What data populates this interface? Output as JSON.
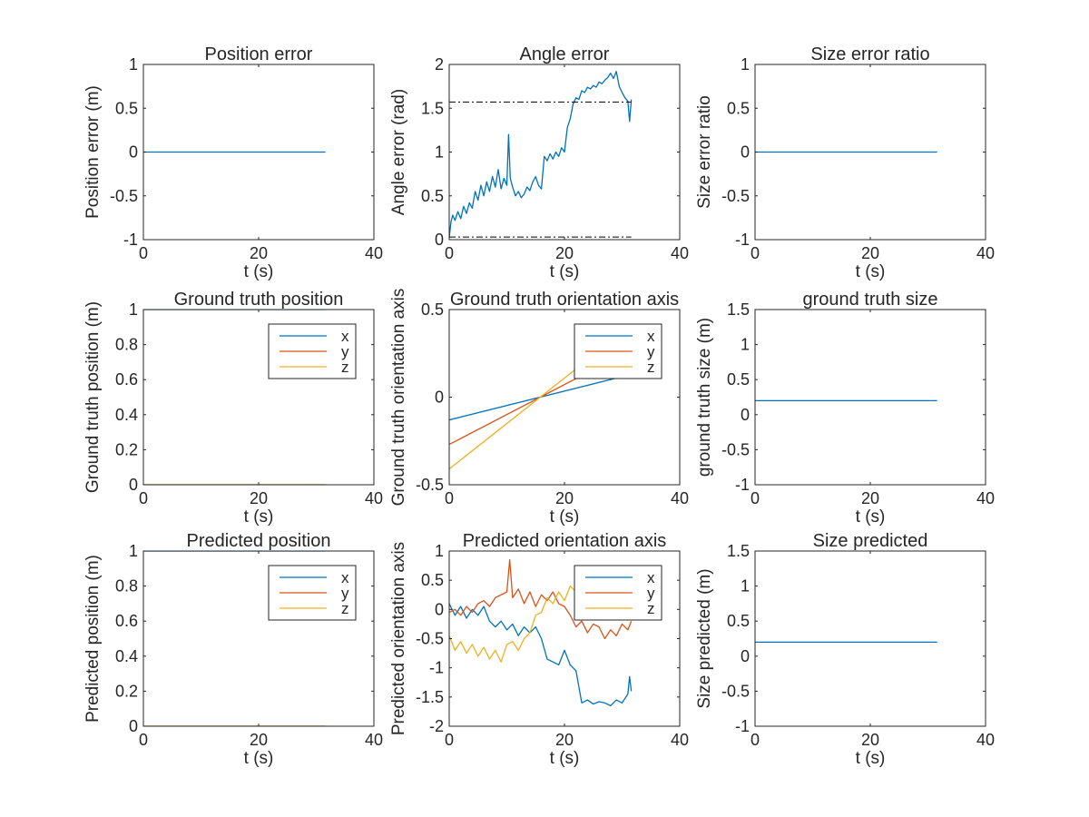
{
  "colors": {
    "x": "#0072BD",
    "y": "#D95319",
    "z": "#EDB120",
    "ref": "#000000",
    "axis": "#262626"
  },
  "chart_data": [
    {
      "id": "position-error",
      "type": "line",
      "title": "Position error",
      "xlabel": "t (s)",
      "ylabel": "Position error (m)",
      "xlim": [
        0,
        40
      ],
      "ylim": [
        -1,
        1
      ],
      "xticks": [
        0,
        20,
        40
      ],
      "yticks": [
        -1,
        -0.5,
        0,
        0.5,
        1
      ],
      "series": [
        {
          "color": "x",
          "x": [
            0,
            31.6
          ],
          "y": [
            0,
            0
          ]
        }
      ]
    },
    {
      "id": "angle-error",
      "type": "line",
      "title": "Angle error",
      "xlabel": "t (s)",
      "ylabel": "Angle error (rad)",
      "xlim": [
        0,
        40
      ],
      "ylim": [
        0,
        2
      ],
      "xticks": [
        0,
        20,
        40
      ],
      "yticks": [
        0,
        0.5,
        1,
        1.5,
        2
      ],
      "series": [
        {
          "color": "x",
          "x": [
            0,
            0.3,
            0.6,
            1,
            1.5,
            2,
            2.5,
            3,
            3.5,
            4,
            4.5,
            5,
            5.5,
            6,
            6.5,
            7,
            7.5,
            8,
            8.5,
            9,
            9.5,
            10,
            10.3,
            10.6,
            11,
            11.5,
            12,
            12.5,
            13,
            13.5,
            14,
            14.5,
            15,
            15.5,
            16,
            16.5,
            17,
            17.5,
            18,
            18.5,
            19,
            19.5,
            20,
            20.5,
            21,
            21.5,
            22,
            22.5,
            23,
            23.5,
            24,
            24.5,
            25,
            25.5,
            26,
            26.5,
            27,
            27.5,
            28,
            28.5,
            29,
            29.5,
            30,
            30.5,
            31,
            31.3,
            31.6
          ],
          "y": [
            0.02,
            0.2,
            0.28,
            0.22,
            0.32,
            0.24,
            0.38,
            0.3,
            0.42,
            0.36,
            0.55,
            0.45,
            0.62,
            0.5,
            0.66,
            0.55,
            0.72,
            0.6,
            0.8,
            0.58,
            0.7,
            0.62,
            1.2,
            0.7,
            0.6,
            0.5,
            0.55,
            0.48,
            0.52,
            0.6,
            0.56,
            0.66,
            0.72,
            0.62,
            0.58,
            0.95,
            0.9,
            0.98,
            0.92,
            1.0,
            0.95,
            1.05,
            1.0,
            1.28,
            1.38,
            1.55,
            1.62,
            1.6,
            1.7,
            1.68,
            1.74,
            1.72,
            1.76,
            1.74,
            1.8,
            1.78,
            1.82,
            1.85,
            1.9,
            1.84,
            1.92,
            1.75,
            1.68,
            1.62,
            1.58,
            1.35,
            1.6
          ]
        },
        {
          "color": "ref",
          "dash": true,
          "x": [
            0,
            31.6
          ],
          "y": [
            1.5708,
            1.5708
          ]
        },
        {
          "color": "ref",
          "dash": true,
          "x": [
            0,
            31.6
          ],
          "y": [
            0.03,
            0.03
          ]
        }
      ]
    },
    {
      "id": "size-error-ratio",
      "type": "line",
      "title": "Size error ratio",
      "xlabel": "t (s)",
      "ylabel": "Size error ratio",
      "xlim": [
        0,
        40
      ],
      "ylim": [
        -1,
        1
      ],
      "xticks": [
        0,
        20,
        40
      ],
      "yticks": [
        -1,
        -0.5,
        0,
        0.5,
        1
      ],
      "series": [
        {
          "color": "x",
          "x": [
            0,
            31.6
          ],
          "y": [
            0,
            0
          ]
        }
      ]
    },
    {
      "id": "ground-truth-position",
      "type": "line",
      "title": "Ground truth position",
      "xlabel": "t (s)",
      "ylabel": "Ground truth position (m)",
      "xlim": [
        0,
        40
      ],
      "ylim": [
        0,
        1
      ],
      "xticks": [
        0,
        20,
        40
      ],
      "yticks": [
        0,
        0.2,
        0.4,
        0.6,
        0.8,
        1
      ],
      "legend": {
        "placement": "top-right",
        "entries": [
          "x",
          "y",
          "z"
        ]
      },
      "series": [
        {
          "color": "x",
          "name": "x",
          "x": [
            0,
            31.6
          ],
          "y": [
            1,
            1
          ]
        },
        {
          "color": "y",
          "name": "y",
          "x": [
            0,
            31.6
          ],
          "y": [
            0,
            0
          ]
        },
        {
          "color": "z",
          "name": "z",
          "x": [
            0,
            31.6
          ],
          "y": [
            0,
            0
          ]
        }
      ]
    },
    {
      "id": "ground-truth-orientation-axis",
      "type": "line",
      "title": "Ground truth orientation axis",
      "xlabel": "t (s)",
      "ylabel": "Ground truth orientation axis",
      "xlim": [
        0,
        40
      ],
      "ylim": [
        -0.5,
        0.5
      ],
      "xticks": [
        0,
        20,
        40
      ],
      "yticks": [
        -0.5,
        0,
        0.5
      ],
      "legend": {
        "placement": "top-right",
        "entries": [
          "x",
          "y",
          "z"
        ]
      },
      "series": [
        {
          "color": "x",
          "name": "x",
          "x": [
            0,
            31.6
          ],
          "y": [
            -0.13,
            0.13
          ]
        },
        {
          "color": "y",
          "name": "y",
          "x": [
            0,
            31.6
          ],
          "y": [
            -0.27,
            0.27
          ]
        },
        {
          "color": "z",
          "name": "z",
          "x": [
            0,
            31.6
          ],
          "y": [
            -0.41,
            0.41
          ]
        }
      ]
    },
    {
      "id": "ground-truth-size",
      "type": "line",
      "title": "ground truth size",
      "xlabel": "t (s)",
      "ylabel": "ground truth size (m)",
      "xlim": [
        0,
        40
      ],
      "ylim": [
        -1,
        1.5
      ],
      "xticks": [
        0,
        20,
        40
      ],
      "yticks": [
        -1,
        -0.5,
        0,
        0.5,
        1,
        1.5
      ],
      "series": [
        {
          "color": "x",
          "x": [
            0,
            31.6
          ],
          "y": [
            0.2,
            0.2
          ]
        }
      ]
    },
    {
      "id": "predicted-position",
      "type": "line",
      "title": "Predicted position",
      "xlabel": "t (s)",
      "ylabel": "Predicted position (m)",
      "xlim": [
        0,
        40
      ],
      "ylim": [
        0,
        1
      ],
      "xticks": [
        0,
        20,
        40
      ],
      "yticks": [
        0,
        0.2,
        0.4,
        0.6,
        0.8,
        1
      ],
      "legend": {
        "placement": "top-right",
        "entries": [
          "x",
          "y",
          "z"
        ]
      },
      "series": [
        {
          "color": "x",
          "name": "x",
          "x": [
            0,
            31.6
          ],
          "y": [
            1,
            1
          ]
        },
        {
          "color": "y",
          "name": "y",
          "x": [
            0,
            31.6
          ],
          "y": [
            0,
            0
          ]
        },
        {
          "color": "z",
          "name": "z",
          "x": [
            0,
            31.6
          ],
          "y": [
            0,
            0
          ]
        }
      ]
    },
    {
      "id": "predicted-orientation-axis",
      "type": "line",
      "title": "Predicted orientation axis",
      "xlabel": "t (s)",
      "ylabel": "Predicted orientation axis",
      "xlim": [
        0,
        40
      ],
      "ylim": [
        -2,
        1
      ],
      "xticks": [
        0,
        20,
        40
      ],
      "yticks": [
        -2,
        -1.5,
        -1,
        -0.5,
        0,
        0.5,
        1
      ],
      "legend": {
        "placement": "top-right",
        "entries": [
          "x",
          "y",
          "z"
        ]
      },
      "series": [
        {
          "color": "x",
          "name": "x",
          "x": [
            0,
            1,
            2,
            3,
            4,
            5,
            6,
            7,
            8,
            9,
            10,
            11,
            12,
            13,
            14,
            15,
            16,
            17,
            18,
            19,
            20,
            21,
            22,
            23,
            24,
            25,
            26,
            27,
            28,
            29,
            30,
            31,
            31.3,
            31.6
          ],
          "y": [
            0.1,
            -0.1,
            0.05,
            -0.15,
            0,
            -0.1,
            0.05,
            -0.2,
            -0.3,
            -0.2,
            -0.35,
            -0.25,
            -0.45,
            -0.3,
            -0.4,
            -0.3,
            -0.5,
            -0.85,
            -0.9,
            -0.95,
            -0.7,
            -0.95,
            -1.05,
            -1.6,
            -1.55,
            -1.62,
            -1.58,
            -1.6,
            -1.65,
            -1.55,
            -1.6,
            -1.45,
            -1.15,
            -1.4
          ]
        },
        {
          "color": "y",
          "name": "y",
          "x": [
            0,
            1,
            2,
            3,
            4,
            5,
            6,
            7,
            8,
            9,
            10,
            10.5,
            11,
            12,
            13,
            14,
            15,
            16,
            17,
            18,
            19,
            20,
            21,
            22,
            23,
            24,
            25,
            26,
            27,
            28,
            29,
            30,
            31,
            31.6
          ],
          "y": [
            -0.05,
            0,
            -0.1,
            0.05,
            -0.05,
            0.1,
            0.15,
            0.05,
            0.2,
            0.25,
            0.3,
            0.85,
            0.2,
            0.35,
            0.1,
            0.3,
            0.05,
            0.25,
            0.15,
            0.3,
            0.1,
            0.05,
            -0.1,
            -0.3,
            -0.2,
            -0.4,
            -0.25,
            -0.3,
            -0.5,
            -0.35,
            -0.45,
            -0.25,
            -0.35,
            -0.2
          ]
        },
        {
          "color": "z",
          "name": "z",
          "x": [
            0,
            1,
            2,
            3,
            4,
            5,
            6,
            7,
            8,
            9,
            10,
            11,
            12,
            13,
            14,
            15,
            16,
            17,
            18,
            19,
            20,
            21,
            22,
            23,
            24,
            25,
            26,
            27,
            28,
            29,
            30,
            31,
            31.6
          ],
          "y": [
            -0.45,
            -0.7,
            -0.55,
            -0.75,
            -0.6,
            -0.8,
            -0.65,
            -0.85,
            -0.7,
            -0.9,
            -0.6,
            -0.55,
            -0.7,
            -0.5,
            -0.4,
            -0.1,
            -0.05,
            0.2,
            0.1,
            0.3,
            0.15,
            0.4,
            0.3,
            0.45,
            0.35,
            0.5,
            0.4,
            0.6,
            0.45,
            0.55,
            0.5,
            0.7,
            0.6
          ]
        }
      ]
    },
    {
      "id": "size-predicted",
      "type": "line",
      "title": "Size predicted",
      "xlabel": "t (s)",
      "ylabel": "Size predicted (m)",
      "xlim": [
        0,
        40
      ],
      "ylim": [
        -1,
        1.5
      ],
      "xticks": [
        0,
        20,
        40
      ],
      "yticks": [
        -1,
        -0.5,
        0,
        0.5,
        1,
        1.5
      ],
      "series": [
        {
          "color": "x",
          "x": [
            0,
            31.6
          ],
          "y": [
            0.2,
            0.2
          ]
        }
      ]
    }
  ]
}
